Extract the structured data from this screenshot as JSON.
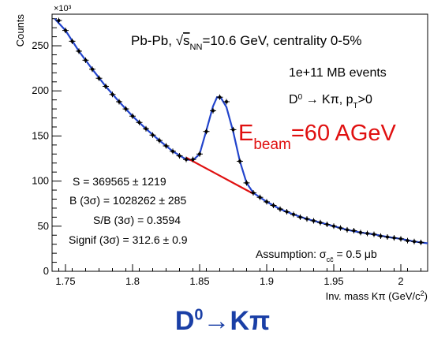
{
  "chart_data": {
    "type": "scatter",
    "ylabel": "Counts",
    "xlabel": "Inv. mass Kπ (GeV/c²)",
    "y_multiplier": "×10³",
    "xlim": [
      1.74,
      2.02
    ],
    "ylim": [
      0,
      285
    ],
    "x_ticks": [
      "1.75",
      "1.8",
      "1.85",
      "1.9",
      "1.95",
      "2"
    ],
    "y_ticks": [
      "0",
      "50",
      "100",
      "150",
      "200",
      "250"
    ],
    "grid": false,
    "series": [
      {
        "color": "#000000",
        "marker": "cross",
        "x": [
          1.745,
          1.75,
          1.755,
          1.76,
          1.765,
          1.77,
          1.775,
          1.78,
          1.785,
          1.79,
          1.795,
          1.8,
          1.805,
          1.81,
          1.815,
          1.82,
          1.825,
          1.83,
          1.835,
          1.84,
          1.845,
          1.85,
          1.855,
          1.86,
          1.865,
          1.87,
          1.875,
          1.88,
          1.885,
          1.89,
          1.895,
          1.9,
          1.905,
          1.91,
          1.915,
          1.92,
          1.925,
          1.93,
          1.935,
          1.94,
          1.945,
          1.95,
          1.955,
          1.96,
          1.965,
          1.97,
          1.975,
          1.98,
          1.985,
          1.99,
          1.995,
          2.0,
          2.005,
          2.01,
          2.015
        ],
        "y": [
          278,
          267,
          255,
          244,
          234,
          224,
          214,
          205,
          196,
          188,
          180,
          172,
          165,
          158,
          151,
          145,
          139,
          133,
          128,
          124,
          124,
          130,
          155,
          178,
          193,
          188,
          157,
          122,
          98,
          87,
          82,
          77,
          73,
          69,
          66,
          63,
          60,
          58,
          56,
          54,
          52,
          50,
          48,
          46,
          45,
          43,
          42,
          41,
          39,
          38,
          37,
          36,
          34,
          33,
          32
        ]
      },
      {
        "color": "#2244cc",
        "style": "line",
        "x": [
          1.742,
          1.75,
          1.76,
          1.77,
          1.78,
          1.79,
          1.8,
          1.81,
          1.82,
          1.83,
          1.84,
          1.845,
          1.85,
          1.855,
          1.86,
          1.863,
          1.866,
          1.87,
          1.875,
          1.88,
          1.885,
          1.89,
          1.9,
          1.91,
          1.92,
          1.93,
          1.94,
          1.95,
          1.96,
          1.97,
          1.98,
          1.99,
          2.0,
          2.01,
          2.02
        ],
        "y": [
          280,
          267,
          244,
          224,
          205,
          188,
          172,
          158,
          145,
          133,
          124,
          123,
          130,
          156,
          183,
          193,
          192,
          182,
          155,
          122,
          98,
          87,
          77,
          69,
          63,
          58,
          54,
          50,
          46,
          43,
          41,
          38,
          36,
          33,
          31
        ]
      },
      {
        "color": "#e01010",
        "style": "line",
        "x": [
          1.84,
          1.86,
          1.88,
          1.89
        ],
        "y": [
          126,
          110,
          94,
          86
        ]
      }
    ],
    "annotations": {
      "system": "Pb-Pb, √s_NN=10.6 GeV, centrality 0-5%",
      "events": "1e+11 MB events",
      "decay": "D⁰ → Kπ, p_T>0",
      "beam": "E_beam=60 AGeV",
      "signal": "S = 369565 ± 1219",
      "background": "B (3σ) = 1028262 ± 285",
      "sb": "S/B (3σ) = 0.3594",
      "signif": "Signif (3σ) = 312.6 ± 0.9",
      "assumption": "Assumption: σ_cc̄ = 0.5 μb"
    }
  },
  "bottom_title": {
    "main": "D",
    "sup": "0",
    "rest": "→Kπ"
  }
}
